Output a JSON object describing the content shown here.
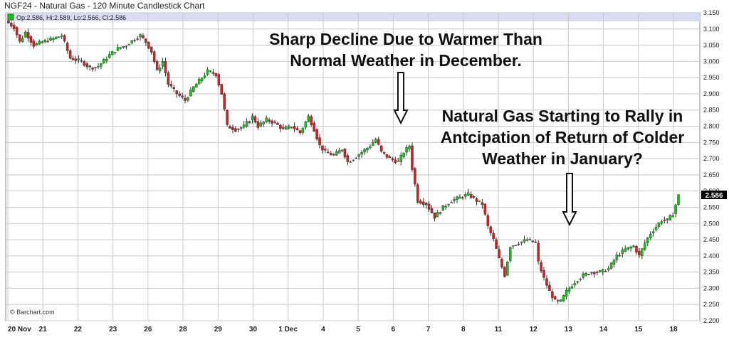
{
  "header": {
    "title": "NGF24 - Natural Gas - 120 Minute Candlestick Chart",
    "ohlc_label": "Op:2.586, Hi:2.589, Lo:2.566, Cl:2.586"
  },
  "watermark": "© Barchart.com",
  "last_price_tag": "2.586",
  "annotations": [
    {
      "lines": [
        "Sharp Decline Due to Warmer Than",
        "Normal Weather in December."
      ]
    },
    {
      "lines": [
        "Natural Gas Starting to Rally in",
        "Antcipation of Return of Colder",
        "Weather in January?"
      ]
    }
  ],
  "colors": {
    "up": "#22bb22",
    "down": "#cc2222",
    "grid": "#c8c8c8",
    "ohlc_band": "#d9ddf4",
    "tag_bg": "#000000",
    "tag_fg": "#ffffff"
  },
  "chart_data": {
    "type": "candlestick",
    "title": "NGF24 - Natural Gas - 120 Minute Candlestick Chart",
    "y_axis_side": "right",
    "ylim": [
      2.2,
      3.15
    ],
    "y_ticks": [
      "2.200",
      "2.250",
      "2.300",
      "2.350",
      "2.400",
      "2.450",
      "2.500",
      "2.550",
      "2.600",
      "2.650",
      "2.700",
      "2.750",
      "2.800",
      "2.850",
      "2.900",
      "2.950",
      "3.000",
      "3.050",
      "3.100",
      "3.150"
    ],
    "x_tick_labels": [
      "20 Nov",
      "21",
      "22",
      "23",
      "26",
      "28",
      "29",
      "30",
      "1 Dec",
      "4",
      "5",
      "6",
      "7",
      "8",
      "11",
      "12",
      "13",
      "14",
      "15",
      "18"
    ],
    "grid": true,
    "path_points": [
      [
        0,
        3.125
      ],
      [
        3,
        3.105
      ],
      [
        5,
        3.06
      ],
      [
        7,
        3.09
      ],
      [
        10,
        3.05
      ],
      [
        13,
        3.06
      ],
      [
        17,
        3.07
      ],
      [
        20,
        3.08
      ],
      [
        23,
        3.01
      ],
      [
        27,
        3.0
      ],
      [
        30,
        2.98
      ],
      [
        33,
        2.985
      ],
      [
        37,
        3.02
      ],
      [
        40,
        3.04
      ],
      [
        43,
        3.05
      ],
      [
        46,
        3.07
      ],
      [
        48,
        3.08
      ],
      [
        50,
        3.06
      ],
      [
        52,
        3.03
      ],
      [
        54,
        2.97
      ],
      [
        56,
        3.0
      ],
      [
        58,
        2.93
      ],
      [
        61,
        2.9
      ],
      [
        64,
        2.88
      ],
      [
        67,
        2.92
      ],
      [
        70,
        2.95
      ],
      [
        72,
        2.97
      ],
      [
        75,
        2.96
      ],
      [
        77,
        2.9
      ],
      [
        79,
        2.8
      ],
      [
        82,
        2.79
      ],
      [
        85,
        2.8
      ],
      [
        88,
        2.83
      ],
      [
        90,
        2.8
      ],
      [
        93,
        2.82
      ],
      [
        96,
        2.81
      ],
      [
        99,
        2.79
      ],
      [
        102,
        2.8
      ],
      [
        105,
        2.78
      ],
      [
        108,
        2.83
      ],
      [
        110,
        2.79
      ],
      [
        112,
        2.74
      ],
      [
        114,
        2.72
      ],
      [
        117,
        2.71
      ],
      [
        120,
        2.73
      ],
      [
        122,
        2.69
      ],
      [
        124,
        2.7
      ],
      [
        127,
        2.72
      ],
      [
        130,
        2.74
      ],
      [
        132,
        2.76
      ],
      [
        134,
        2.72
      ],
      [
        137,
        2.7
      ],
      [
        140,
        2.69
      ],
      [
        142,
        2.72
      ],
      [
        144,
        2.74
      ],
      [
        145,
        2.67
      ],
      [
        147,
        2.57
      ],
      [
        150,
        2.56
      ],
      [
        153,
        2.52
      ],
      [
        156,
        2.55
      ],
      [
        159,
        2.57
      ],
      [
        162,
        2.58
      ],
      [
        165,
        2.59
      ],
      [
        168,
        2.57
      ],
      [
        170,
        2.56
      ],
      [
        172,
        2.49
      ],
      [
        174,
        2.45
      ],
      [
        176,
        2.39
      ],
      [
        178,
        2.34
      ],
      [
        180,
        2.43
      ],
      [
        183,
        2.44
      ],
      [
        186,
        2.45
      ],
      [
        189,
        2.44
      ],
      [
        190,
        2.38
      ],
      [
        192,
        2.33
      ],
      [
        194,
        2.29
      ],
      [
        196,
        2.26
      ],
      [
        198,
        2.26
      ],
      [
        200,
        2.29
      ],
      [
        203,
        2.32
      ],
      [
        206,
        2.34
      ],
      [
        209,
        2.35
      ],
      [
        212,
        2.35
      ],
      [
        215,
        2.36
      ],
      [
        218,
        2.4
      ],
      [
        221,
        2.42
      ],
      [
        224,
        2.43
      ],
      [
        226,
        2.4
      ],
      [
        228,
        2.44
      ],
      [
        230,
        2.47
      ],
      [
        232,
        2.49
      ],
      [
        234,
        2.51
      ],
      [
        236,
        2.51
      ],
      [
        238,
        2.53
      ],
      [
        240,
        2.586
      ]
    ],
    "candle_count": 240,
    "last": {
      "open": 2.586,
      "high": 2.589,
      "low": 2.566,
      "close": 2.586
    }
  }
}
